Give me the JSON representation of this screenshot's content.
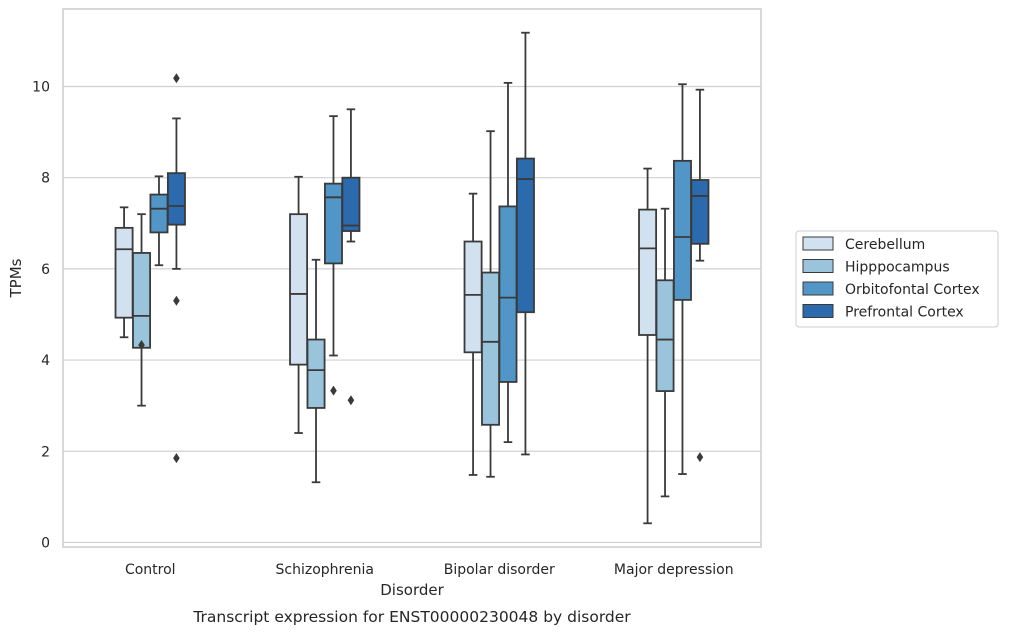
{
  "chart_data": {
    "type": "boxplot",
    "caption": "Transcript expression for ENST00000230048 by disorder",
    "xlabel": "Disorder",
    "ylabel": "TPMs",
    "ylim": [
      -0.1,
      11.7
    ],
    "yticks": [
      0,
      2,
      4,
      6,
      8,
      10
    ],
    "grid": "horizontal",
    "legend_position": "right",
    "categories": [
      "Control",
      "Schizophrenia",
      "Bipolar disorder",
      "Major depression"
    ],
    "series": [
      {
        "name": "Cerebellum",
        "color": "#d1e1f0",
        "boxes": [
          {
            "whislo": 4.5,
            "q1": 4.93,
            "med": 6.43,
            "q3": 6.9,
            "whishi": 7.35,
            "fliers": []
          },
          {
            "whislo": 2.4,
            "q1": 3.9,
            "med": 5.45,
            "q3": 7.2,
            "whishi": 8.02,
            "fliers": []
          },
          {
            "whislo": 1.48,
            "q1": 4.17,
            "med": 5.43,
            "q3": 6.6,
            "whishi": 7.65,
            "fliers": []
          },
          {
            "whislo": 0.42,
            "q1": 4.55,
            "med": 6.45,
            "q3": 7.3,
            "whishi": 8.2,
            "fliers": []
          }
        ]
      },
      {
        "name": "Hipppocampus",
        "color": "#9ac3dc",
        "boxes": [
          {
            "whislo": 3.0,
            "q1": 4.27,
            "med": 4.97,
            "q3": 6.35,
            "whishi": 7.2,
            "fliers": [
              4.33
            ]
          },
          {
            "whislo": 1.32,
            "q1": 2.95,
            "med": 3.78,
            "q3": 4.45,
            "whishi": 6.2,
            "fliers": []
          },
          {
            "whislo": 1.44,
            "q1": 2.58,
            "med": 4.4,
            "q3": 5.92,
            "whishi": 9.02,
            "fliers": []
          },
          {
            "whislo": 1.01,
            "q1": 3.32,
            "med": 4.45,
            "q3": 5.75,
            "whishi": 7.32,
            "fliers": []
          }
        ]
      },
      {
        "name": "Orbitofontal Cortex",
        "color": "#5196c7",
        "boxes": [
          {
            "whislo": 6.08,
            "q1": 6.8,
            "med": 7.32,
            "q3": 7.63,
            "whishi": 8.03,
            "fliers": []
          },
          {
            "whislo": 4.1,
            "q1": 6.12,
            "med": 7.57,
            "q3": 7.87,
            "whishi": 9.35,
            "fliers": [
              3.33
            ]
          },
          {
            "whislo": 2.2,
            "q1": 3.52,
            "med": 5.37,
            "q3": 7.37,
            "whishi": 10.08,
            "fliers": []
          },
          {
            "whislo": 1.5,
            "q1": 5.32,
            "med": 6.7,
            "q3": 8.37,
            "whishi": 10.05,
            "fliers": []
          }
        ]
      },
      {
        "name": "Prefrontal Cortex",
        "color": "#2b6aad",
        "boxes": [
          {
            "whislo": 6.0,
            "q1": 6.97,
            "med": 7.38,
            "q3": 8.1,
            "whishi": 9.3,
            "fliers": [
              10.18,
              5.3,
              1.85
            ]
          },
          {
            "whislo": 6.6,
            "q1": 6.83,
            "med": 6.95,
            "q3": 8.0,
            "whishi": 9.5,
            "fliers": [
              3.12
            ]
          },
          {
            "whislo": 1.93,
            "q1": 5.05,
            "med": 7.97,
            "q3": 8.42,
            "whishi": 11.18,
            "fliers": []
          },
          {
            "whislo": 6.18,
            "q1": 6.55,
            "med": 7.6,
            "q3": 7.95,
            "whishi": 9.93,
            "fliers": [
              1.87
            ]
          }
        ]
      }
    ]
  }
}
